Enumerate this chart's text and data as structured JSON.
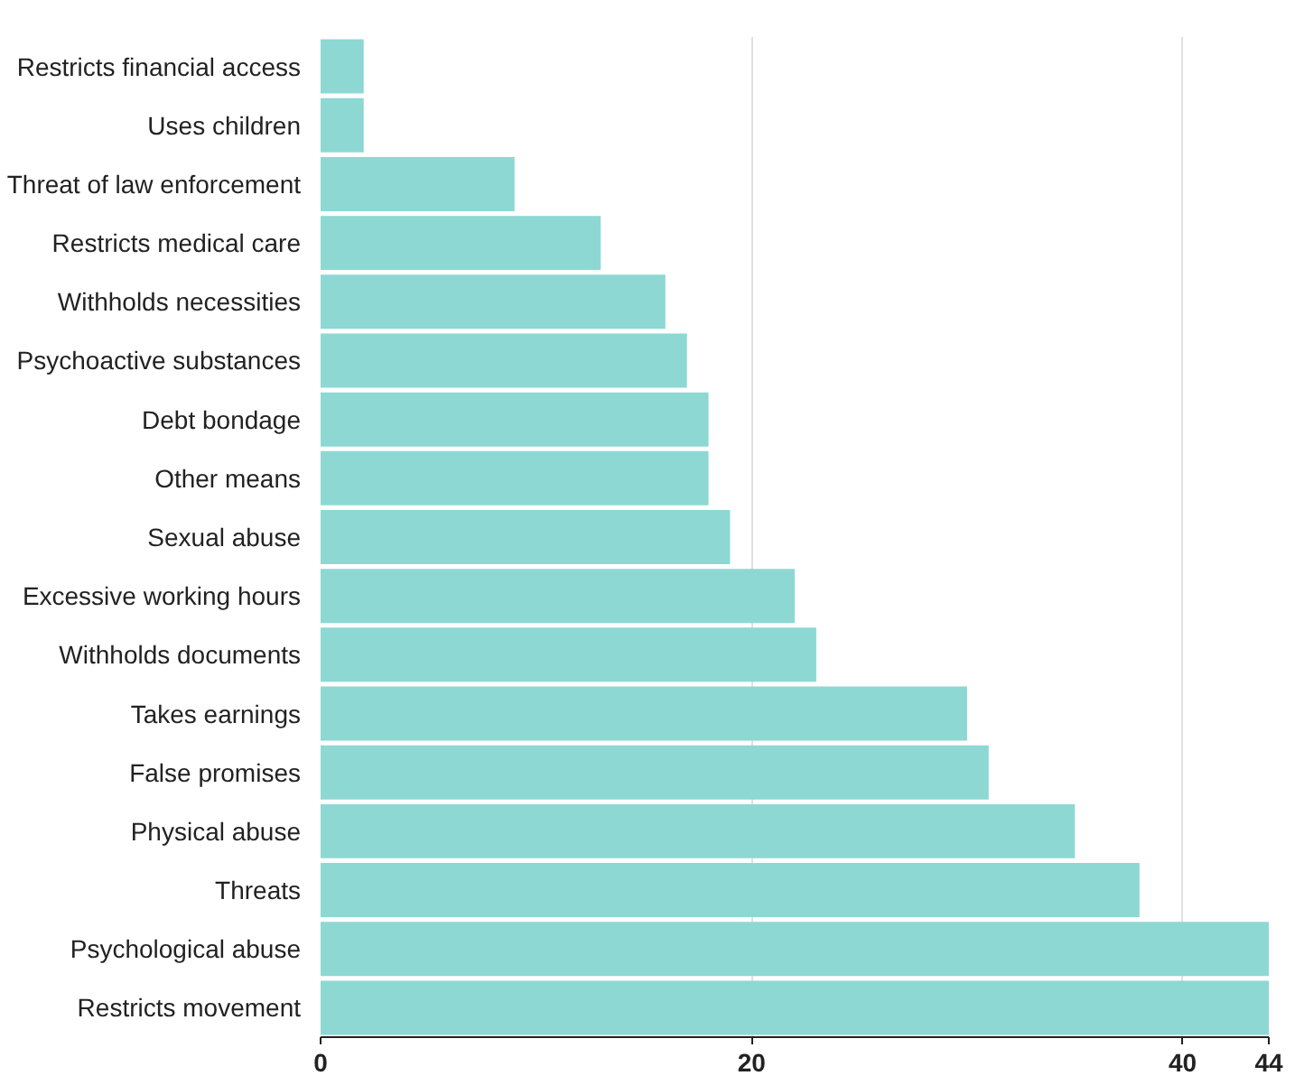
{
  "chart_data": {
    "type": "bar",
    "orientation": "horizontal",
    "categories": [
      "Restricts financial access",
      "Uses children",
      "Threat of law enforcement",
      "Restricts medical care",
      "Withholds necessities",
      "Psychoactive substances",
      "Debt bondage",
      "Other means",
      "Sexual abuse",
      "Excessive working hours",
      "Withholds documents",
      "Takes earnings",
      "False promises",
      "Physical abuse",
      "Threats",
      "Psychological abuse",
      "Restricts movement"
    ],
    "values": [
      2,
      2,
      9,
      13,
      16,
      17,
      18,
      18,
      19,
      22,
      23,
      30,
      31,
      35,
      38,
      44,
      44
    ],
    "color": "#8dd8d3",
    "xlim": [
      0,
      44
    ],
    "xticks": [
      0,
      20,
      40,
      44
    ],
    "grid": "x"
  }
}
